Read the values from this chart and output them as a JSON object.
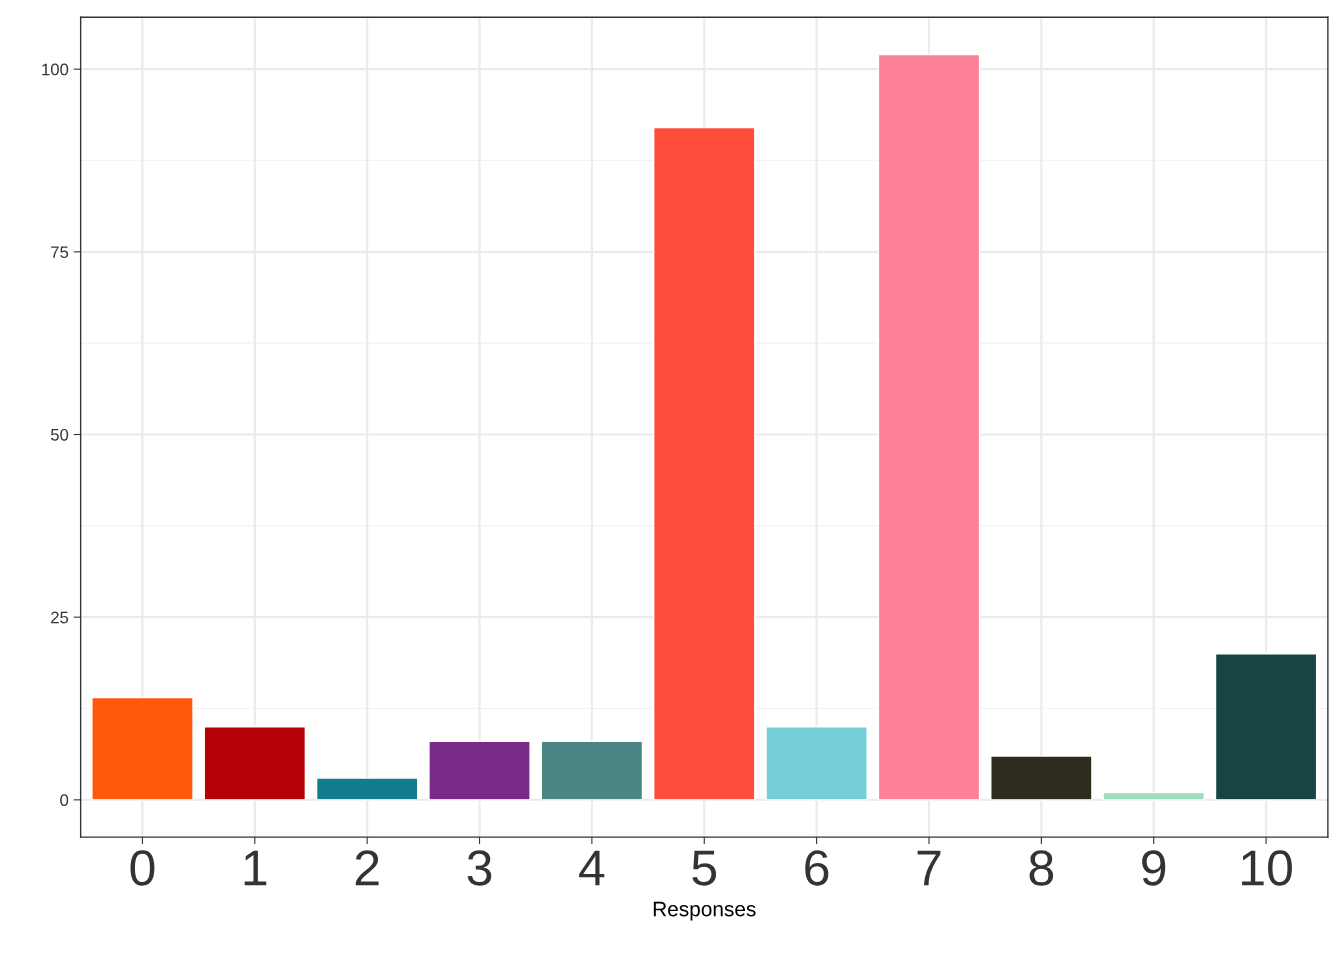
{
  "chart_data": {
    "type": "bar",
    "xlabel": "Responses",
    "categories": [
      "0",
      "1",
      "2",
      "3",
      "4",
      "5",
      "6",
      "7",
      "8",
      "9",
      "10"
    ],
    "values": [
      14,
      10,
      3,
      8,
      8,
      92,
      10,
      102,
      6,
      1,
      20
    ],
    "colors": [
      "#fe5a0a",
      "#b50005",
      "#137d8e",
      "#782b87",
      "#4a8584",
      "#ff4d3c",
      "#75cfd9",
      "#fc8197",
      "#2e2c1e",
      "#9addc1",
      "#184443"
    ],
    "ylim": [
      -5.1,
      107.1
    ],
    "yticks": [
      0,
      25,
      50,
      75,
      100
    ],
    "grid": true
  }
}
